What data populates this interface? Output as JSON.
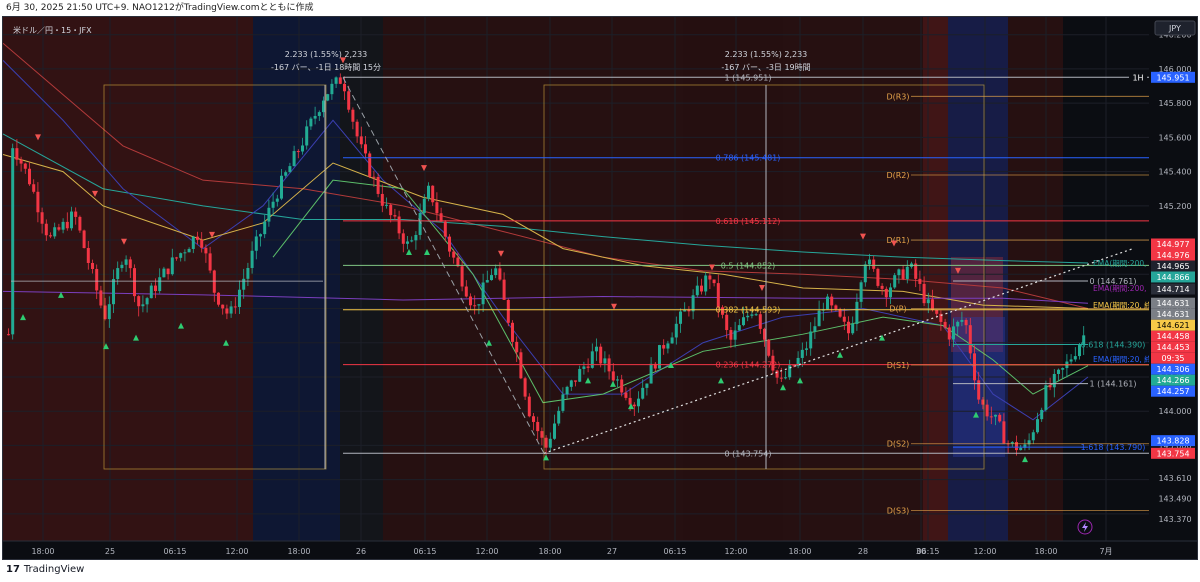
{
  "header": {
    "caption": "6月 30, 2025 21:50 UTC+9. NAO1212がTradingView.comとともに作成"
  },
  "chart_info": {
    "symbol_label": "米ドル／円・15・JFX",
    "currency": "JPY",
    "timeframe_badge": "1H",
    "watermark": "TradingView"
  },
  "measure_boxes": [
    {
      "line1": "2.233 (1.55%) 2,233",
      "line2": "-167 バー、-1日 18時間 15分"
    },
    {
      "line1": "2.233 (1.55%) 2,233",
      "line2": "-167 バー、-3日 19時間"
    }
  ],
  "price_scale": {
    "ticks": [
      "146.200",
      "146.000",
      "145.800",
      "145.600",
      "145.400",
      "145.200",
      "144.800",
      "144.600",
      "144.200",
      "144.000",
      "143.800",
      "143.610",
      "143.490",
      "143.370"
    ]
  },
  "price_tags": [
    {
      "label": "145.951",
      "color": "#2962ff"
    },
    {
      "label": "144.977",
      "color": "#f23645"
    },
    {
      "label": "144.976",
      "color": "#f23645"
    },
    {
      "label": "144.965",
      "color": "#1e222d"
    },
    {
      "label": "144.866",
      "color": "#26a69a"
    },
    {
      "label": "144.714",
      "color": "#2a2e39"
    },
    {
      "label": "144.631",
      "color": "#7b7f86"
    },
    {
      "label": "144.631",
      "color": "#7b7f86"
    },
    {
      "label": "144.621",
      "color": "#f7c948"
    },
    {
      "label": "144.458",
      "color": "#f23645"
    },
    {
      "label": "144.453",
      "color": "#f23645"
    },
    {
      "label": "09:35",
      "color": "#f23645"
    },
    {
      "label": "144.306",
      "color": "#2962ff"
    },
    {
      "label": "144.266",
      "color": "#22ab94"
    },
    {
      "label": "144.257",
      "color": "#2962ff"
    },
    {
      "label": "143.828",
      "color": "#2962ff"
    },
    {
      "label": "143.754",
      "color": "#f23645"
    }
  ],
  "time_axis": {
    "labels": [
      "18:00",
      "25",
      "06:15",
      "12:00",
      "18:00",
      "26",
      "06:15",
      "12:00",
      "18:00",
      "27",
      "06:15",
      "12:00",
      "18:00",
      "28",
      "06:15",
      "30",
      "12:00",
      "18:00",
      "7月"
    ]
  },
  "fib_levels": [
    {
      "label": "1 (145.951)",
      "color": "#b2b5be"
    },
    {
      "label": "0.786 (145.481)",
      "color": "#2962ff"
    },
    {
      "label": "0.618 (145.112)",
      "color": "#f23645"
    },
    {
      "label": "0.5 (144.852)",
      "color": "#81c784"
    },
    {
      "label": "0.382 (144.593)",
      "color": "#f7c948"
    },
    {
      "label": "0.236 (144.272)",
      "color": "#f23645"
    },
    {
      "label": "0 (143.754)",
      "color": "#b2b5be"
    }
  ],
  "fib_levels_2": [
    {
      "label": "0 (144.761)",
      "color": "#b2b5be"
    },
    {
      "label": "0.618 (144.390)",
      "color": "#26a69a"
    },
    {
      "label": "1 (144.161)",
      "color": "#b2b5be"
    },
    {
      "label": "1.618 (143.790)",
      "color": "#2962ff"
    }
  ],
  "pivots": [
    {
      "label": "D(R3)"
    },
    {
      "label": "D(R2)"
    },
    {
      "label": "D(R1)"
    },
    {
      "label": "D(P)"
    },
    {
      "label": "D(S1)"
    },
    {
      "label": "D(S2)"
    },
    {
      "label": "D(S3)"
    }
  ],
  "ema_labels": [
    {
      "label": "EMA(期間:200, 終値)",
      "color": "#26a69a"
    },
    {
      "label": "EMA(期間:200, 終値)",
      "color": "#9c27b0"
    },
    {
      "label": "EMA(期間:20, 終値)",
      "color": "#f7c948"
    },
    {
      "label": "EMA(期間:20, 終値)",
      "color": "#2962ff"
    }
  ],
  "colors": {
    "background": "#0b0d12",
    "up": "#22ab94",
    "down": "#f23645",
    "session_red": "#3a1414",
    "session_blue": "#0f1a3a"
  }
}
